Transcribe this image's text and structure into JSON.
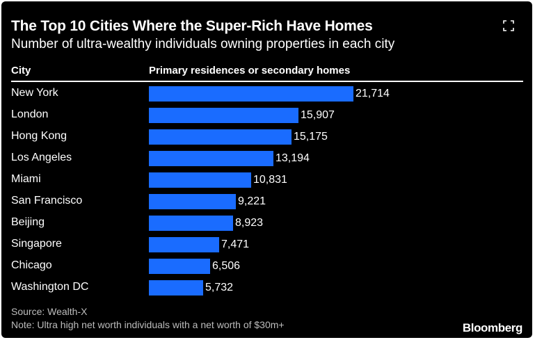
{
  "chart_data": {
    "type": "bar",
    "orientation": "horizontal",
    "title": "The Top 10 Cities Where the Super-Rich Have Homes",
    "subtitle": "Number of ultra-wealthy individuals owning properties in each city",
    "category_header": "City",
    "value_header": "Primary residences or secondary homes",
    "categories": [
      "New York",
      "London",
      "Hong Kong",
      "Los Angeles",
      "Miami",
      "San Francisco",
      "Beijing",
      "Singapore",
      "Chicago",
      "Washington DC"
    ],
    "values": [
      21714,
      15907,
      15175,
      13194,
      10831,
      9221,
      8923,
      7471,
      6506,
      5732
    ],
    "value_labels": [
      "21,714",
      "15,907",
      "15,175",
      "13,194",
      "10,831",
      "9,221",
      "8,923",
      "7,471",
      "6,506",
      "5,732"
    ],
    "bar_color": "#1a6cff",
    "xlim": [
      0,
      21714
    ],
    "grid": false
  },
  "source": "Source: Wealth-X",
  "note": "Note: Ultra high net worth individuals with a net worth of $30m+",
  "brand": "Bloomberg",
  "expand_icon": "expand-icon"
}
